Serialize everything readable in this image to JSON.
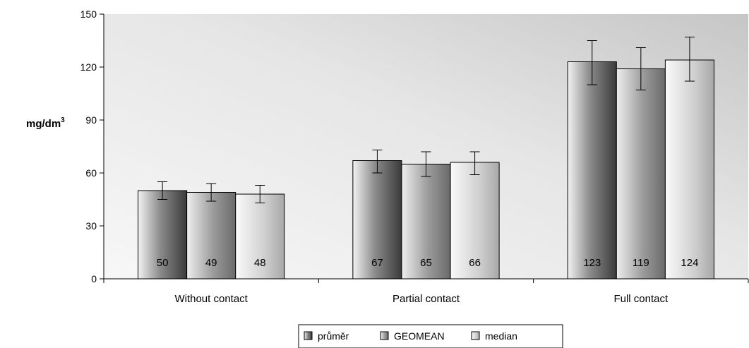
{
  "chart_data": {
    "type": "bar",
    "categories": [
      "Without contact",
      "Partial contact",
      "Full contact"
    ],
    "series": [
      {
        "name": "průměr",
        "values": [
          50,
          67,
          123
        ],
        "labels": [
          "50",
          "67",
          "123"
        ],
        "err_low": [
          45,
          60,
          110
        ],
        "err_high": [
          55,
          73,
          135
        ],
        "style": "dark"
      },
      {
        "name": "GEOMEAN",
        "values": [
          49,
          65,
          119
        ],
        "labels": [
          "49",
          "65",
          "119"
        ],
        "err_low": [
          44,
          58,
          107
        ],
        "err_high": [
          54,
          72,
          131
        ],
        "style": "mid"
      },
      {
        "name": "median",
        "values": [
          48,
          66,
          124
        ],
        "labels": [
          "48",
          "66",
          "124"
        ],
        "err_low": [
          43,
          59,
          112
        ],
        "err_high": [
          53,
          72,
          137
        ],
        "style": "light"
      }
    ],
    "ylabel": "mg/dm",
    "ylabel_sup": "3",
    "ylim": [
      0,
      150
    ],
    "yticks": [
      0,
      30,
      60,
      90,
      120,
      150
    ],
    "ytick_labels": [
      "0",
      "30",
      "60",
      "90",
      "120",
      "150"
    ],
    "grid": false,
    "legend_position": "bottom-center",
    "plot_background": "gradient gray"
  }
}
